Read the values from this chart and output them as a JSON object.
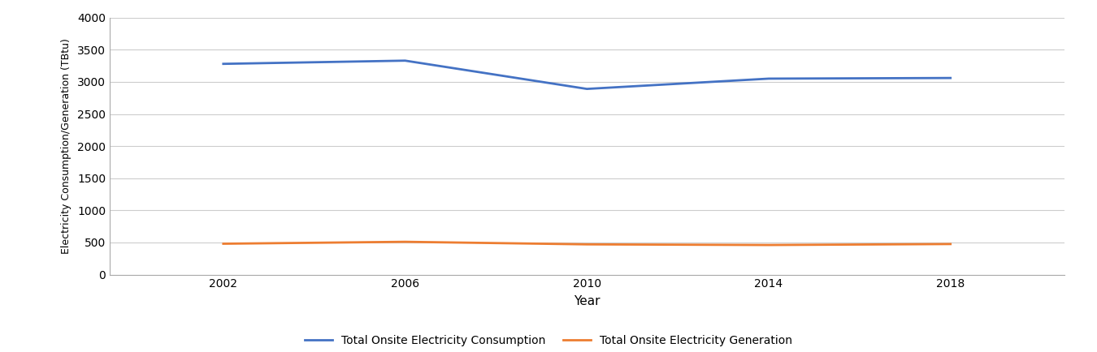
{
  "years": [
    2002,
    2006,
    2010,
    2014,
    2018
  ],
  "consumption": [
    3280,
    3330,
    2890,
    3050,
    3060
  ],
  "generation": [
    480,
    510,
    470,
    460,
    475
  ],
  "consumption_color": "#4472C4",
  "generation_color": "#ED7D31",
  "ylabel": "Electricity Consumption/Generation (TBtu)",
  "xlabel": "Year",
  "ylim": [
    0,
    4000
  ],
  "yticks": [
    0,
    500,
    1000,
    1500,
    2000,
    2500,
    3000,
    3500,
    4000
  ],
  "xticks": [
    2002,
    2006,
    2010,
    2014,
    2018
  ],
  "legend_consumption": "Total Onsite Electricity Consumption",
  "legend_generation": "Total Onsite Electricity Generation",
  "line_width": 2.0,
  "grid_color": "#CCCCCC",
  "background_color": "#FFFFFF",
  "plot_bg_color": "#FFFFFF",
  "xlim": [
    1999.5,
    2020.5
  ]
}
